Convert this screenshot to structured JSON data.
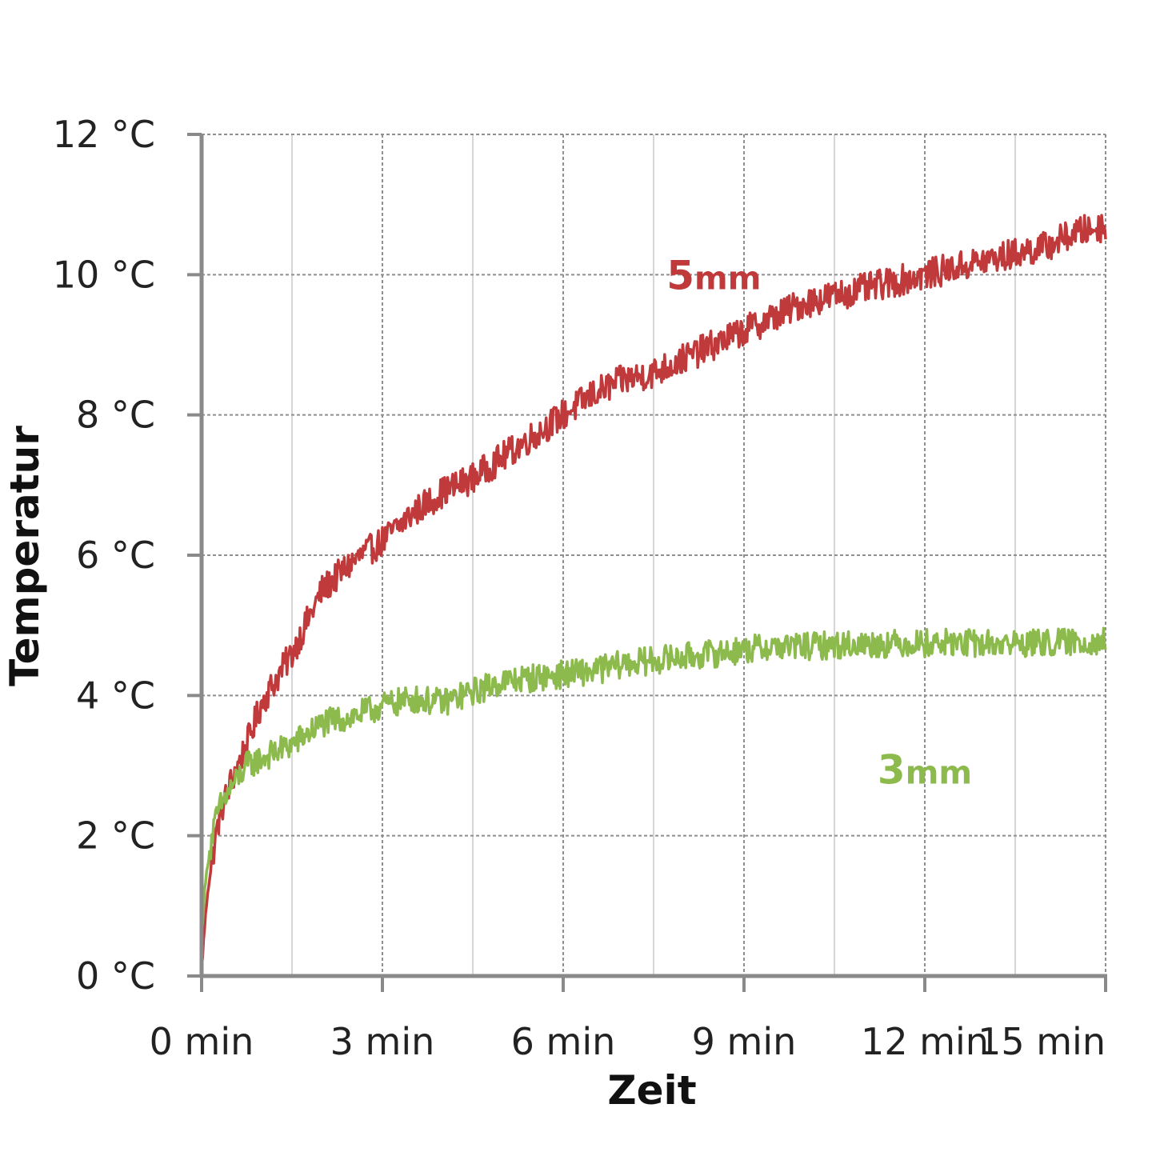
{
  "chart_data": {
    "type": "line",
    "xlabel": "Zeit",
    "ylabel": "Temperatur",
    "x_ticks": [
      {
        "value": 0,
        "label": "0 min"
      },
      {
        "value": 3,
        "label": "3 min"
      },
      {
        "value": 6,
        "label": "6 min"
      },
      {
        "value": 9,
        "label": "9 min"
      },
      {
        "value": 12,
        "label": "12 min"
      },
      {
        "value": 15,
        "label": "15 min"
      }
    ],
    "y_ticks": [
      {
        "value": 0,
        "label": "0 °C"
      },
      {
        "value": 2,
        "label": "2 °C"
      },
      {
        "value": 4,
        "label": "4 °C"
      },
      {
        "value": 6,
        "label": "6 °C"
      },
      {
        "value": 8,
        "label": "8 °C"
      },
      {
        "value": 10,
        "label": "10 °C"
      },
      {
        "value": 12,
        "label": "12 °C"
      }
    ],
    "xlim": [
      0,
      15
    ],
    "ylim": [
      0,
      12
    ],
    "grid": true,
    "series": [
      {
        "name": "5mm",
        "label_num": "5",
        "label_unit": "mm",
        "color": "#c0393b",
        "x": [
          0,
          0.05,
          0.1,
          0.2,
          0.3,
          0.5,
          0.75,
          1.0,
          1.5,
          2.0,
          2.5,
          3.0,
          3.5,
          4.0,
          4.5,
          5.0,
          5.5,
          6.0,
          6.5,
          7.0,
          7.5,
          8.0,
          8.5,
          9.0,
          9.5,
          10.0,
          10.5,
          11.0,
          11.5,
          12.0,
          12.5,
          13.0,
          13.5,
          14.0,
          14.5,
          15.0
        ],
        "y": [
          0.1,
          0.7,
          1.2,
          1.8,
          2.3,
          2.8,
          3.3,
          3.9,
          4.6,
          5.5,
          5.9,
          6.2,
          6.6,
          6.9,
          7.1,
          7.4,
          7.7,
          8.0,
          8.3,
          8.5,
          8.6,
          8.8,
          9.0,
          9.2,
          9.4,
          9.6,
          9.7,
          9.8,
          9.9,
          10.0,
          10.1,
          10.2,
          10.3,
          10.4,
          10.6,
          10.7
        ]
      },
      {
        "name": "3mm",
        "label_num": "3",
        "label_unit": "mm",
        "color": "#8cba4c",
        "x": [
          0,
          0.05,
          0.1,
          0.2,
          0.3,
          0.5,
          0.75,
          1.0,
          1.5,
          2.0,
          2.5,
          3.0,
          3.5,
          4.0,
          4.5,
          5.0,
          5.5,
          6.0,
          6.5,
          7.0,
          7.5,
          8.0,
          8.5,
          9.0,
          9.5,
          10.0,
          10.5,
          11.0,
          11.5,
          12.0,
          12.5,
          13.0,
          13.5,
          14.0,
          14.5,
          15.0
        ],
        "y": [
          0.6,
          1.2,
          1.6,
          2.1,
          2.4,
          2.7,
          3.0,
          3.1,
          3.3,
          3.6,
          3.7,
          3.85,
          3.95,
          3.9,
          4.05,
          4.2,
          4.25,
          4.3,
          4.35,
          4.45,
          4.5,
          4.55,
          4.6,
          4.65,
          4.7,
          4.7,
          4.72,
          4.73,
          4.74,
          4.75,
          4.75,
          4.74,
          4.74,
          4.75,
          4.76,
          4.78
        ]
      }
    ]
  }
}
